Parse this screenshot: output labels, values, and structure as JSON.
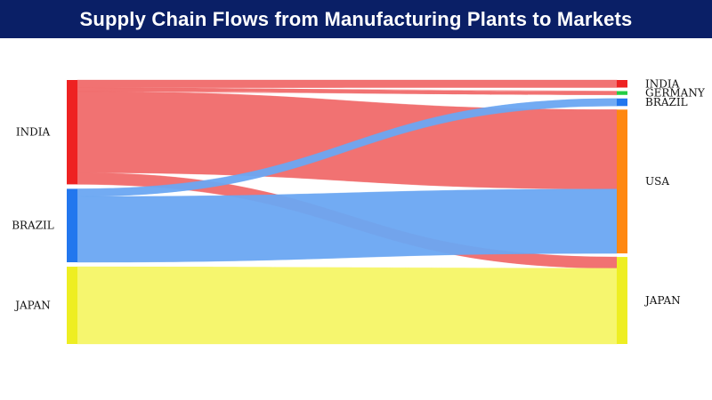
{
  "title": "Supply Chain Flows from Manufacturing Plants to Markets",
  "chart_data": {
    "type": "sankey",
    "sources": [
      {
        "name": "INDIA",
        "color": "#ee2222"
      },
      {
        "name": "BRAZIL",
        "color": "#2277ee"
      },
      {
        "name": "JAPAN",
        "color": "#eeee22"
      }
    ],
    "targets": [
      {
        "name": "INDIA",
        "color": "#ee2222"
      },
      {
        "name": "GERMANY",
        "color": "#22cc44"
      },
      {
        "name": "BRAZIL",
        "color": "#2277ee"
      },
      {
        "name": "USA",
        "color": "#ff8811"
      },
      {
        "name": "JAPAN",
        "color": "#eeee22"
      }
    ],
    "link_colors": {
      "INDIA": "#f06a6a",
      "BRAZIL": "#6aa6f2",
      "JAPAN": "#f5f566"
    },
    "links": [
      {
        "source": "INDIA",
        "target": "INDIA",
        "value": 2
      },
      {
        "source": "INDIA",
        "target": "GERMANY",
        "value": 1
      },
      {
        "source": "INDIA",
        "target": "USA",
        "value": 21
      },
      {
        "source": "INDIA",
        "target": "JAPAN",
        "value": 3
      },
      {
        "source": "BRAZIL",
        "target": "BRAZIL",
        "value": 2
      },
      {
        "source": "BRAZIL",
        "target": "USA",
        "value": 17
      },
      {
        "source": "JAPAN",
        "target": "JAPAN",
        "value": 20
      }
    ]
  }
}
